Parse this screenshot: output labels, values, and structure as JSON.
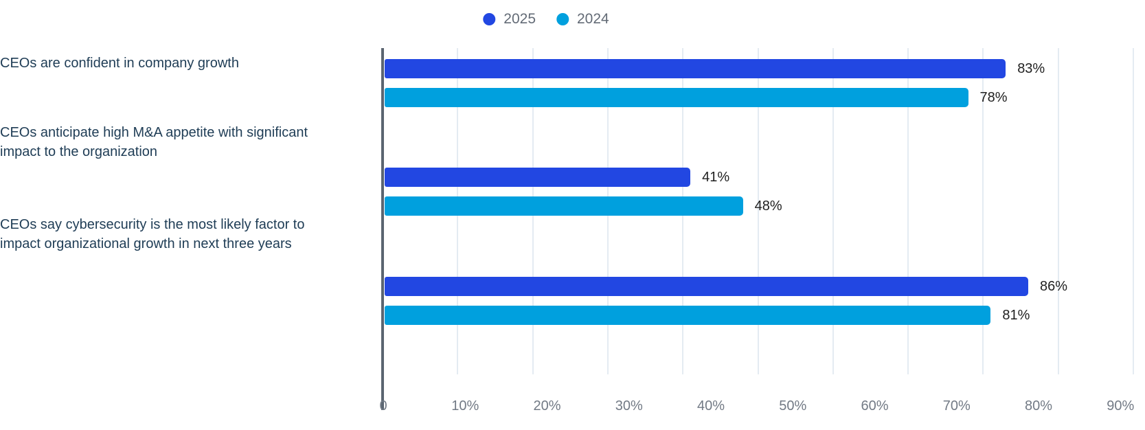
{
  "chart_data": {
    "type": "bar",
    "orientation": "horizontal",
    "title": "",
    "categories": [
      "CEOs are confident in company growth",
      "CEOs anticipate high M&A appetite with significant impact to the organization",
      "CEOs say cybersecurity is the most likely factor to impact organizational growth in next three years"
    ],
    "category_lines": [
      [
        "CEOs are confident in company growth"
      ],
      [
        "CEOs anticipate high M&A appetite with significant",
        "impact to the organization"
      ],
      [
        "CEOs say cybersecurity is the most likely factor to",
        "impact organizational growth in next three years"
      ]
    ],
    "series": [
      {
        "name": "2025",
        "color": "#2247E2",
        "values": [
          83,
          41,
          86
        ],
        "labels": [
          "83%",
          "41%",
          "86%"
        ]
      },
      {
        "name": "2024",
        "color": "#00A0DE",
        "values": [
          78,
          48,
          81
        ],
        "labels": [
          "78%",
          "48%",
          "81%"
        ]
      }
    ],
    "xlim": [
      0,
      100
    ],
    "x_tick_labels": [
      "0",
      "10%",
      "20%",
      "30%",
      "40%",
      "50%",
      "60%",
      "70%",
      "80%",
      "90%"
    ],
    "grid": true,
    "legend_position": "top-center"
  },
  "style": {
    "background": "#FFFFFF",
    "axis_line_color": "#5B6571",
    "gridline_color": "#E4EBF2",
    "tick_label_color": "#727A85",
    "category_label_color": "#1E3C55",
    "value_label_color": "#1F1F1F",
    "legend_text_color": "#636B76"
  }
}
